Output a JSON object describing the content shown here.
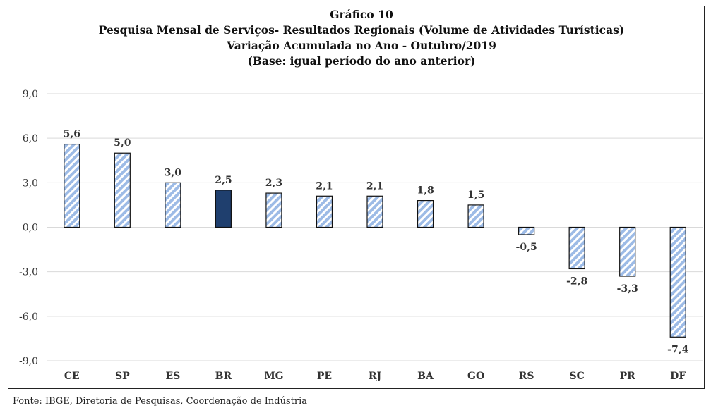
{
  "chart_data": {
    "type": "bar",
    "title_lines": [
      "Gráfico 10",
      "Pesquisa Mensal de Serviços- Resultados Regionais (Volume de Atividades Turísticas)",
      "Variação Acumulada no Ano - Outubro/2019",
      "(Base: igual período do ano anterior)"
    ],
    "categories": [
      "CE",
      "SP",
      "ES",
      "BR",
      "MG",
      "PE",
      "RJ",
      "BA",
      "GO",
      "RS",
      "SC",
      "PR",
      "DF"
    ],
    "values": [
      5.6,
      5.0,
      3.0,
      2.5,
      2.3,
      2.1,
      2.1,
      1.8,
      1.5,
      -0.5,
      -2.8,
      -3.3,
      -7.4
    ],
    "value_labels": [
      "5,6",
      "5,0",
      "3,0",
      "2,5",
      "2,3",
      "2,1",
      "2,1",
      "1,8",
      "1,5",
      "-0,5",
      "-2,8",
      "-3,3",
      "-7,4"
    ],
    "highlight_category": "BR",
    "ylim": [
      -9,
      9
    ],
    "yticks": [
      9,
      6,
      3,
      0,
      -3,
      -6,
      -9
    ],
    "ytick_labels": [
      "9,0",
      "6,0",
      "3,0",
      "0,0",
      "-3,0",
      "-6,0",
      "-9,0"
    ],
    "grid": true,
    "colors": {
      "bar_hatch": "#9dbbe6",
      "bar_hatch_bg": "#ffffff",
      "highlight": "#1f3f6e",
      "bar_border": "#111111",
      "grid": "#d9d9d9"
    }
  },
  "source_note": "Fonte: IBGE, Diretoria de Pesquisas, Coordenação de Indústria"
}
